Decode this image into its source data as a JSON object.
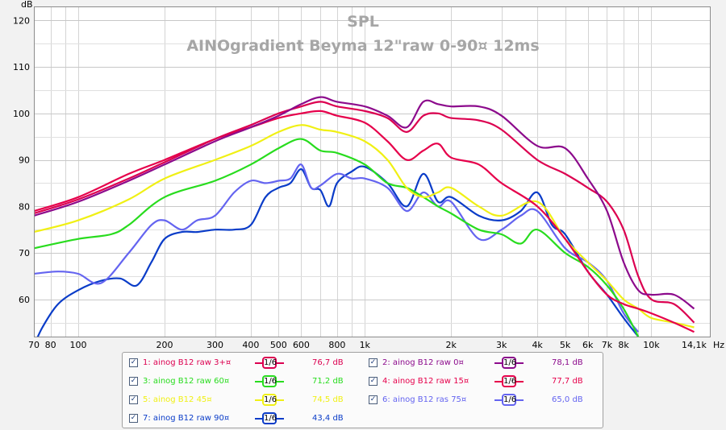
{
  "chart_data": {
    "type": "line",
    "title": "SPL",
    "subtitle": "AINOgradient Beyma 12\"raw 0-90¤ 12ms",
    "ylabel": "dB",
    "xunit": "Hz",
    "ylim": [
      52,
      123
    ],
    "xlim": [
      70,
      16000
    ],
    "xscale": "log",
    "grid": true,
    "yticks": [
      120,
      110,
      100,
      90,
      80,
      70,
      60
    ],
    "xticks": [
      {
        "v": 70,
        "label": "70"
      },
      {
        "v": 80,
        "label": "80"
      },
      {
        "v": 100,
        "label": "100"
      },
      {
        "v": 200,
        "label": "200"
      },
      {
        "v": 300,
        "label": "300"
      },
      {
        "v": 400,
        "label": "400"
      },
      {
        "v": 500,
        "label": "500"
      },
      {
        "v": 600,
        "label": "600"
      },
      {
        "v": 800,
        "label": "800"
      },
      {
        "v": 1000,
        "label": "1k"
      },
      {
        "v": 2000,
        "label": "2k"
      },
      {
        "v": 3000,
        "label": "3k"
      },
      {
        "v": 4000,
        "label": "4k"
      },
      {
        "v": 5000,
        "label": "5k"
      },
      {
        "v": 6000,
        "label": "6k"
      },
      {
        "v": 7000,
        "label": "7k"
      },
      {
        "v": 8000,
        "label": "8k"
      },
      {
        "v": 10000,
        "label": "10k"
      },
      {
        "v": 14100,
        "label": "14,1k"
      }
    ],
    "series": [
      {
        "name": "1: ainog B12 raw 3+¤",
        "color": "#dc0050",
        "smoothing": "1/6",
        "level": "76,7 dB",
        "points": [
          [
            70,
            78.5
          ],
          [
            100,
            81.5
          ],
          [
            150,
            86
          ],
          [
            200,
            89.5
          ],
          [
            300,
            94.5
          ],
          [
            400,
            97.5
          ],
          [
            500,
            100
          ],
          [
            600,
            101.5
          ],
          [
            700,
            102.5
          ],
          [
            800,
            101.5
          ],
          [
            1000,
            100.5
          ],
          [
            1200,
            99
          ],
          [
            1400,
            96
          ],
          [
            1600,
            99.5
          ],
          [
            1800,
            100
          ],
          [
            2000,
            99
          ],
          [
            2500,
            98.5
          ],
          [
            3000,
            96.5
          ],
          [
            4000,
            90
          ],
          [
            5000,
            87
          ],
          [
            6000,
            84
          ],
          [
            7000,
            81
          ],
          [
            8000,
            75
          ],
          [
            9000,
            65
          ],
          [
            10000,
            60
          ],
          [
            12000,
            59
          ],
          [
            14100,
            55
          ]
        ]
      },
      {
        "name": "2: ainog B12 raw 0¤",
        "color": "#8c0a8c",
        "smoothing": "1/6",
        "level": "78,1 dB",
        "points": [
          [
            70,
            78
          ],
          [
            100,
            81
          ],
          [
            150,
            85.5
          ],
          [
            200,
            89
          ],
          [
            300,
            94
          ],
          [
            400,
            97
          ],
          [
            500,
            99.5
          ],
          [
            600,
            102
          ],
          [
            700,
            103.5
          ],
          [
            800,
            102.5
          ],
          [
            1000,
            101.5
          ],
          [
            1200,
            99.5
          ],
          [
            1400,
            97
          ],
          [
            1600,
            102.5
          ],
          [
            1800,
            102
          ],
          [
            2000,
            101.5
          ],
          [
            2500,
            101.5
          ],
          [
            3000,
            99.5
          ],
          [
            4000,
            93
          ],
          [
            5000,
            92.5
          ],
          [
            6000,
            86
          ],
          [
            7000,
            79
          ],
          [
            8000,
            68
          ],
          [
            9000,
            62
          ],
          [
            10000,
            61
          ],
          [
            12000,
            61
          ],
          [
            14100,
            58
          ]
        ]
      },
      {
        "name": "3: ainog B12 raw 60¤",
        "color": "#28dc1e",
        "smoothing": "1/6",
        "level": "71,2 dB",
        "points": [
          [
            70,
            71
          ],
          [
            100,
            73
          ],
          [
            130,
            74
          ],
          [
            150,
            76
          ],
          [
            200,
            82
          ],
          [
            300,
            85.5
          ],
          [
            400,
            89
          ],
          [
            500,
            92.5
          ],
          [
            600,
            94.5
          ],
          [
            700,
            92
          ],
          [
            800,
            91.5
          ],
          [
            1000,
            89
          ],
          [
            1200,
            85
          ],
          [
            1400,
            84
          ],
          [
            1600,
            82
          ],
          [
            1800,
            80
          ],
          [
            2000,
            78.5
          ],
          [
            2500,
            75
          ],
          [
            3000,
            74
          ],
          [
            3500,
            72
          ],
          [
            4000,
            75
          ],
          [
            5000,
            70
          ],
          [
            6000,
            67
          ],
          [
            7000,
            63
          ],
          [
            8000,
            58
          ],
          [
            9000,
            52
          ]
        ]
      },
      {
        "name": "4: ainog B12 raw 15¤",
        "color": "#e6004b",
        "smoothing": "1/6",
        "level": "77,7 dB",
        "points": [
          [
            70,
            79
          ],
          [
            100,
            82
          ],
          [
            150,
            87
          ],
          [
            200,
            90
          ],
          [
            300,
            94.5
          ],
          [
            400,
            97
          ],
          [
            500,
            99
          ],
          [
            600,
            100
          ],
          [
            700,
            100.5
          ],
          [
            800,
            99.5
          ],
          [
            1000,
            98
          ],
          [
            1200,
            94
          ],
          [
            1400,
            90
          ],
          [
            1600,
            92
          ],
          [
            1800,
            93.5
          ],
          [
            2000,
            90.5
          ],
          [
            2500,
            89
          ],
          [
            3000,
            85
          ],
          [
            4000,
            80
          ],
          [
            5000,
            73
          ],
          [
            6000,
            66
          ],
          [
            7000,
            61
          ],
          [
            8000,
            59
          ],
          [
            9000,
            58
          ],
          [
            10000,
            57
          ],
          [
            12000,
            55
          ],
          [
            14100,
            53
          ]
        ]
      },
      {
        "name": "5: ainog B12 45¤",
        "color": "#f0f014",
        "smoothing": "1/6",
        "level": "74,5 dB",
        "points": [
          [
            70,
            74.5
          ],
          [
            100,
            77
          ],
          [
            150,
            81.5
          ],
          [
            200,
            86
          ],
          [
            300,
            90
          ],
          [
            400,
            93
          ],
          [
            500,
            96
          ],
          [
            600,
            97.5
          ],
          [
            700,
            96.5
          ],
          [
            800,
            96
          ],
          [
            1000,
            94
          ],
          [
            1200,
            90
          ],
          [
            1400,
            84
          ],
          [
            1600,
            82
          ],
          [
            1800,
            83
          ],
          [
            2000,
            84
          ],
          [
            2500,
            80
          ],
          [
            3000,
            78
          ],
          [
            4000,
            81
          ],
          [
            5000,
            73
          ],
          [
            6000,
            68
          ],
          [
            7000,
            64
          ],
          [
            8000,
            60
          ],
          [
            9000,
            58
          ],
          [
            10000,
            56
          ],
          [
            12000,
            55
          ],
          [
            14100,
            54
          ]
        ]
      },
      {
        "name": "6: ainog B12 ras 75¤",
        "color": "#6464f0",
        "smoothing": "1/6",
        "level": "65,0 dB",
        "points": [
          [
            70,
            65.5
          ],
          [
            85,
            66
          ],
          [
            100,
            65.5
          ],
          [
            120,
            63.5
          ],
          [
            150,
            70
          ],
          [
            180,
            76
          ],
          [
            200,
            77
          ],
          [
            230,
            75
          ],
          [
            260,
            77
          ],
          [
            300,
            78
          ],
          [
            350,
            83
          ],
          [
            400,
            85.5
          ],
          [
            450,
            85
          ],
          [
            500,
            85.5
          ],
          [
            550,
            86
          ],
          [
            600,
            89
          ],
          [
            650,
            84
          ],
          [
            700,
            84.5
          ],
          [
            800,
            87
          ],
          [
            900,
            86
          ],
          [
            1000,
            86
          ],
          [
            1200,
            84
          ],
          [
            1400,
            79
          ],
          [
            1600,
            83
          ],
          [
            1800,
            80
          ],
          [
            2000,
            81
          ],
          [
            2500,
            73
          ],
          [
            3000,
            75
          ],
          [
            3500,
            78
          ],
          [
            4000,
            79
          ],
          [
            5000,
            71
          ],
          [
            6000,
            68
          ],
          [
            7000,
            64
          ],
          [
            8000,
            57
          ],
          [
            9000,
            53
          ]
        ]
      },
      {
        "name": "7: ainog B12 raw 90¤",
        "color": "#0a3cc8",
        "smoothing": "1/6",
        "level": "43,4 dB",
        "points": [
          [
            70,
            50
          ],
          [
            75,
            54
          ],
          [
            85,
            59
          ],
          [
            100,
            62
          ],
          [
            120,
            64
          ],
          [
            140,
            64.5
          ],
          [
            160,
            63
          ],
          [
            180,
            68
          ],
          [
            200,
            73
          ],
          [
            230,
            74.5
          ],
          [
            260,
            74.5
          ],
          [
            300,
            75
          ],
          [
            350,
            75
          ],
          [
            400,
            76
          ],
          [
            450,
            82
          ],
          [
            500,
            84
          ],
          [
            550,
            85
          ],
          [
            600,
            88
          ],
          [
            650,
            84
          ],
          [
            700,
            83.5
          ],
          [
            750,
            80
          ],
          [
            800,
            85
          ],
          [
            900,
            87.5
          ],
          [
            1000,
            88.5
          ],
          [
            1200,
            85
          ],
          [
            1400,
            80
          ],
          [
            1600,
            87
          ],
          [
            1800,
            81
          ],
          [
            2000,
            82
          ],
          [
            2500,
            78
          ],
          [
            3000,
            77
          ],
          [
            3500,
            79
          ],
          [
            4000,
            83
          ],
          [
            4500,
            76
          ],
          [
            5000,
            74
          ],
          [
            6000,
            66
          ],
          [
            7000,
            61
          ],
          [
            8000,
            56
          ],
          [
            9000,
            52
          ]
        ]
      }
    ]
  }
}
